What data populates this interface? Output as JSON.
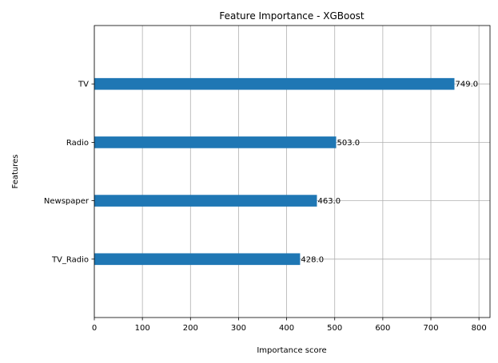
{
  "chart_data": {
    "type": "bar",
    "orientation": "horizontal",
    "title": "Feature Importance - XGBoost",
    "xlabel": "Importance score",
    "ylabel": "Features",
    "categories": [
      "TV",
      "Radio",
      "Newspaper",
      "TV_Radio"
    ],
    "values": [
      749.0,
      503.0,
      463.0,
      428.0
    ],
    "data_labels": [
      "749.0",
      "503.0",
      "463.0",
      "428.0"
    ],
    "xlim": [
      0,
      823
    ],
    "xticks": [
      0,
      100,
      200,
      300,
      400,
      500,
      600,
      700,
      800
    ],
    "grid": true,
    "bar_color": "#1f77b4",
    "grid_color": "#b0b0b0"
  }
}
